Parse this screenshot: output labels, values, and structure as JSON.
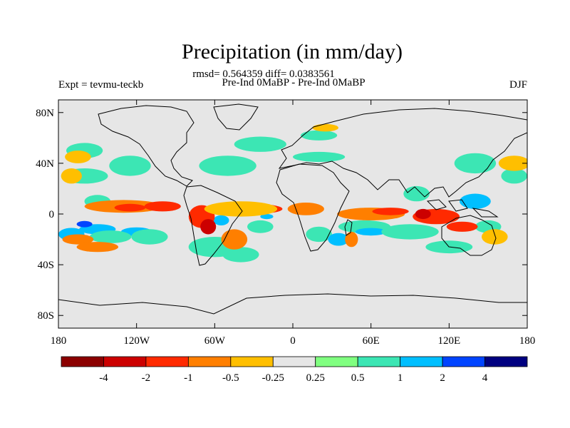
{
  "chart_data": {
    "type": "heatmap",
    "title": "Precipitation (in mm/day)",
    "stats_text": "rmsd= 0.564359 diff= 0.0383561",
    "left_label": "Expt = tevmu-teckb",
    "center_label": "Pre-Ind 0MaBP - Pre-Ind 0MaBP",
    "right_label": "DJF",
    "x_axis": {
      "range": [
        -180,
        180
      ],
      "ticks": [
        {
          "value": -180,
          "label": "180"
        },
        {
          "value": -120,
          "label": "120W"
        },
        {
          "value": -60,
          "label": "60W"
        },
        {
          "value": 0,
          "label": "0"
        },
        {
          "value": 60,
          "label": "60E"
        },
        {
          "value": 120,
          "label": "120E"
        },
        {
          "value": 180,
          "label": "180"
        }
      ]
    },
    "y_axis": {
      "range": [
        -90,
        90
      ],
      "ticks": [
        {
          "value": 80,
          "label": "80N"
        },
        {
          "value": 40,
          "label": "40N"
        },
        {
          "value": 0,
          "label": "0"
        },
        {
          "value": -40,
          "label": "40S"
        },
        {
          "value": -80,
          "label": "80S"
        }
      ]
    },
    "colorbar": {
      "colors": [
        "#8b0000",
        "#cc0000",
        "#ff2a00",
        "#ff7f00",
        "#ffbf00",
        "#e6e6e6",
        "#80ff80",
        "#3ce6b4",
        "#00bfff",
        "#0044ff",
        "#000080"
      ],
      "labels": [
        "-4",
        "-2",
        "-1",
        "-0.5",
        "-0.25",
        "0.25",
        "0.5",
        "1",
        "2",
        "4"
      ]
    },
    "anomalies": [
      {
        "lon": -150,
        "lat": -12,
        "value": 1.5,
        "rx": 14,
        "ry": 4
      },
      {
        "lon": -160,
        "lat": -8,
        "value": 2.5,
        "rx": 6,
        "ry": 2.5
      },
      {
        "lon": -120,
        "lat": -14,
        "value": 1.5,
        "rx": 12,
        "ry": 3.5
      },
      {
        "lon": -170,
        "lat": -16,
        "value": 1,
        "rx": 10,
        "ry": 5
      },
      {
        "lon": -110,
        "lat": -18,
        "value": 0.7,
        "rx": 14,
        "ry": 6
      },
      {
        "lon": -140,
        "lat": -18,
        "value": 0.7,
        "rx": 16,
        "ry": 5
      },
      {
        "lon": -60,
        "lat": -26,
        "value": 0.7,
        "rx": 20,
        "ry": 8
      },
      {
        "lon": -40,
        "lat": -32,
        "value": 0.7,
        "rx": 14,
        "ry": 6
      },
      {
        "lon": -25,
        "lat": -10,
        "value": 0.7,
        "rx": 10,
        "ry": 5
      },
      {
        "lon": -55,
        "lat": -5,
        "value": 1.5,
        "rx": 6,
        "ry": 4
      },
      {
        "lon": -20,
        "lat": -2,
        "value": 1.5,
        "rx": 5,
        "ry": 2
      },
      {
        "lon": 20,
        "lat": -16,
        "value": 0.7,
        "rx": 10,
        "ry": 6
      },
      {
        "lon": 55,
        "lat": -10,
        "value": 0.7,
        "rx": 20,
        "ry": 5
      },
      {
        "lon": 60,
        "lat": -14,
        "value": 1.5,
        "rx": 12,
        "ry": 3
      },
      {
        "lon": 35,
        "lat": -20,
        "value": 1.5,
        "rx": 8,
        "ry": 5
      },
      {
        "lon": 90,
        "lat": -14,
        "value": 0.7,
        "rx": 22,
        "ry": 6
      },
      {
        "lon": 120,
        "lat": -26,
        "value": 0.7,
        "rx": 18,
        "ry": 5
      },
      {
        "lon": 150,
        "lat": -10,
        "value": 0.7,
        "rx": 10,
        "ry": 5
      },
      {
        "lon": -150,
        "lat": 10,
        "value": 0.7,
        "rx": 10,
        "ry": 5
      },
      {
        "lon": -160,
        "lat": 30,
        "value": 0.7,
        "rx": 18,
        "ry": 6
      },
      {
        "lon": -125,
        "lat": 38,
        "value": 0.7,
        "rx": 16,
        "ry": 8
      },
      {
        "lon": -50,
        "lat": 38,
        "value": 0.7,
        "rx": 22,
        "ry": 8
      },
      {
        "lon": -25,
        "lat": 55,
        "value": 0.7,
        "rx": 20,
        "ry": 6
      },
      {
        "lon": -160,
        "lat": 50,
        "value": 0.7,
        "rx": 14,
        "ry": 6
      },
      {
        "lon": 140,
        "lat": 40,
        "value": 0.7,
        "rx": 16,
        "ry": 8
      },
      {
        "lon": 140,
        "lat": 10,
        "value": 1.5,
        "rx": 12,
        "ry": 6
      },
      {
        "lon": 95,
        "lat": 16,
        "value": 0.7,
        "rx": 10,
        "ry": 6
      },
      {
        "lon": 20,
        "lat": 45,
        "value": 0.7,
        "rx": 20,
        "ry": 4
      },
      {
        "lon": 170,
        "lat": 30,
        "value": 0.7,
        "rx": 10,
        "ry": 6
      },
      {
        "lon": 20,
        "lat": 62,
        "value": 0.7,
        "rx": 14,
        "ry": 4
      },
      {
        "lon": -130,
        "lat": 6,
        "value": -0.7,
        "rx": 30,
        "ry": 5
      },
      {
        "lon": -100,
        "lat": 6,
        "value": -1.5,
        "rx": 14,
        "ry": 4
      },
      {
        "lon": -125,
        "lat": 5,
        "value": -1.5,
        "rx": 12,
        "ry": 3
      },
      {
        "lon": -70,
        "lat": -2,
        "value": -1.5,
        "rx": 10,
        "ry": 9
      },
      {
        "lon": -65,
        "lat": -10,
        "value": -2.5,
        "rx": 6,
        "ry": 6
      },
      {
        "lon": -45,
        "lat": -20,
        "value": -1,
        "rx": 10,
        "ry": 8
      },
      {
        "lon": -30,
        "lat": 4,
        "value": -1.5,
        "rx": 22,
        "ry": 4
      },
      {
        "lon": 10,
        "lat": 4,
        "value": -0.7,
        "rx": 14,
        "ry": 5
      },
      {
        "lon": -40,
        "lat": 4,
        "value": -0.35,
        "rx": 28,
        "ry": 6
      },
      {
        "lon": 60,
        "lat": 0,
        "value": -1,
        "rx": 26,
        "ry": 5
      },
      {
        "lon": 75,
        "lat": 2,
        "value": -1.5,
        "rx": 14,
        "ry": 3
      },
      {
        "lon": 110,
        "lat": -2,
        "value": -1.5,
        "rx": 18,
        "ry": 6
      },
      {
        "lon": 100,
        "lat": 0,
        "value": -2.5,
        "rx": 6,
        "ry": 4
      },
      {
        "lon": 130,
        "lat": -10,
        "value": -1.5,
        "rx": 12,
        "ry": 4
      },
      {
        "lon": 45,
        "lat": -20,
        "value": -1,
        "rx": 5,
        "ry": 6
      },
      {
        "lon": -165,
        "lat": -20,
        "value": -1,
        "rx": 12,
        "ry": 4
      },
      {
        "lon": -150,
        "lat": -26,
        "value": -0.7,
        "rx": 16,
        "ry": 4
      },
      {
        "lon": -170,
        "lat": 30,
        "value": -0.35,
        "rx": 8,
        "ry": 6
      },
      {
        "lon": 170,
        "lat": 40,
        "value": -0.35,
        "rx": 12,
        "ry": 6
      },
      {
        "lon": 25,
        "lat": 68,
        "value": -0.35,
        "rx": 10,
        "ry": 3
      },
      {
        "lon": -165,
        "lat": 45,
        "value": -0.35,
        "rx": 10,
        "ry": 5
      },
      {
        "lon": 155,
        "lat": -18,
        "value": -0.35,
        "rx": 10,
        "ry": 6
      }
    ]
  }
}
